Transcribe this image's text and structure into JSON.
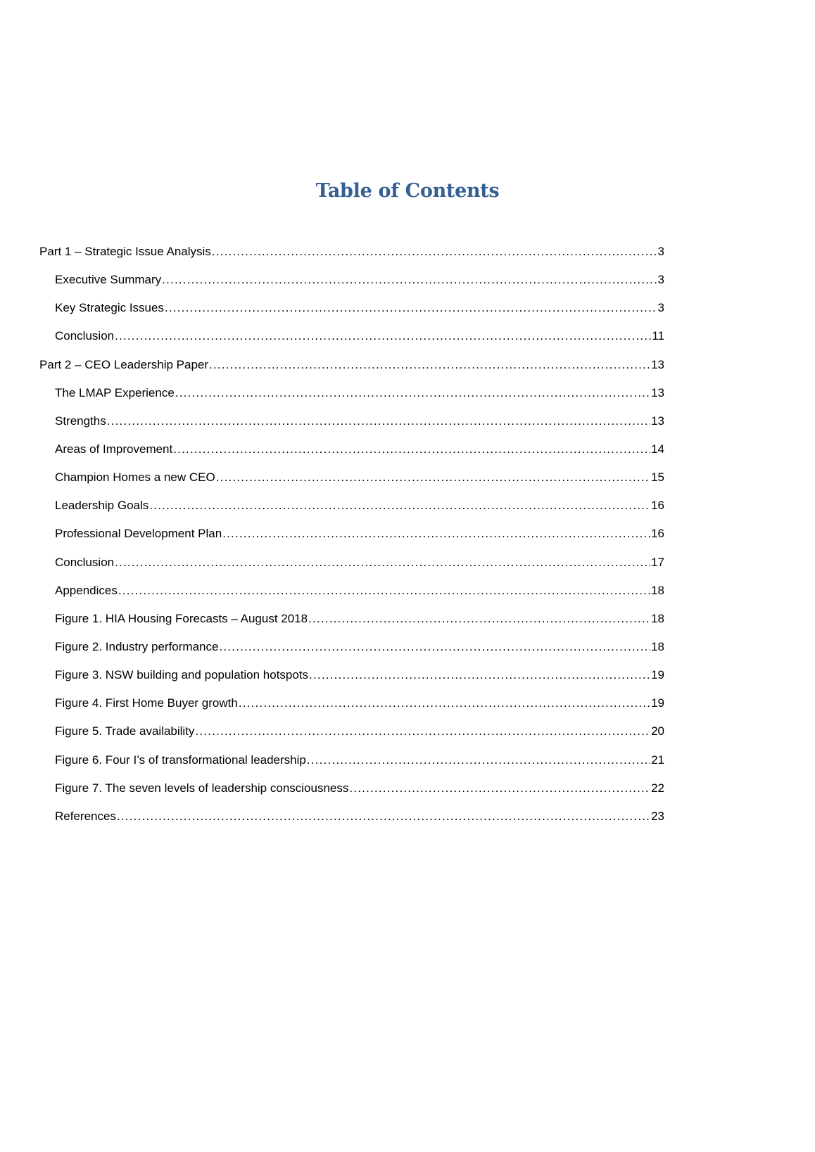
{
  "title": "Table of Contents",
  "entries": [
    {
      "label": "Part 1 – Strategic Issue Analysis",
      "page": "3",
      "level": 1
    },
    {
      "label": "Executive Summary",
      "page": "3",
      "level": 2
    },
    {
      "label": "Key Strategic Issues",
      "page": "3",
      "level": 2
    },
    {
      "label": "Conclusion",
      "page": "11",
      "level": 2
    },
    {
      "label": "Part 2 – CEO Leadership Paper",
      "page": "13",
      "level": 1
    },
    {
      "label": "The LMAP Experience",
      "page": "13",
      "level": 2
    },
    {
      "label": "Strengths",
      "page": "13",
      "level": 2
    },
    {
      "label": "Areas of Improvement",
      "page": "14",
      "level": 2
    },
    {
      "label": "Champion Homes a new CEO",
      "page": "15",
      "level": 2
    },
    {
      "label": "Leadership Goals",
      "page": "16",
      "level": 2
    },
    {
      "label": "Professional Development Plan",
      "page": "16",
      "level": 2
    },
    {
      "label": "Conclusion",
      "page": "17",
      "level": 2
    },
    {
      "label": "Appendices",
      "page": "18",
      "level": 2
    },
    {
      "label": "Figure 1. HIA Housing Forecasts – August 2018",
      "page": "18",
      "level": 2
    },
    {
      "label": "Figure 2. Industry performance",
      "page": "18",
      "level": 2
    },
    {
      "label": "Figure 3. NSW building and population hotspots",
      "page": "19",
      "level": 2
    },
    {
      "label": "Figure 4. First Home Buyer growth",
      "page": "19",
      "level": 2
    },
    {
      "label": "Figure 5. Trade availability",
      "page": "20",
      "level": 2
    },
    {
      "label": "Figure 6. Four I’s of transformational leadership",
      "page": "21",
      "level": 2
    },
    {
      "label": "Figure 7. The seven levels of leadership consciousness",
      "page": "22",
      "level": 2
    },
    {
      "label": "References",
      "page": "23",
      "level": 2
    }
  ],
  "colors": {
    "title": "#365F91",
    "text": "#000000"
  }
}
